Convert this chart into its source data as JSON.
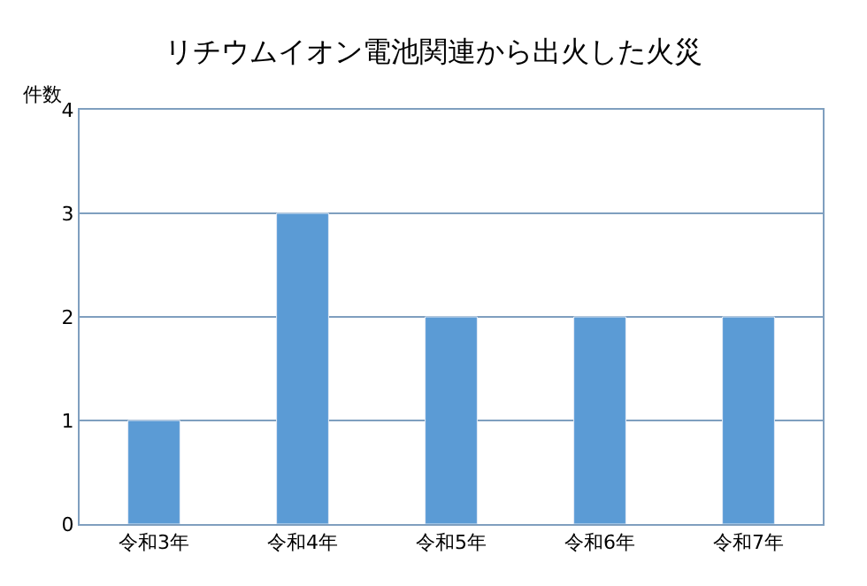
{
  "chart_data": {
    "type": "bar",
    "title": "リチウムイオン電池関連から出火した火災",
    "ylabel": "件数",
    "categories": [
      "令和3年",
      "令和4年",
      "令和5年",
      "令和6年",
      "令和7年"
    ],
    "values": [
      1,
      3,
      2,
      2,
      2
    ],
    "color": "#5b9bd5",
    "ylim": [
      0,
      4
    ],
    "yticks": [
      0,
      1,
      2,
      3,
      4
    ],
    "grid": "y",
    "legend": false
  }
}
